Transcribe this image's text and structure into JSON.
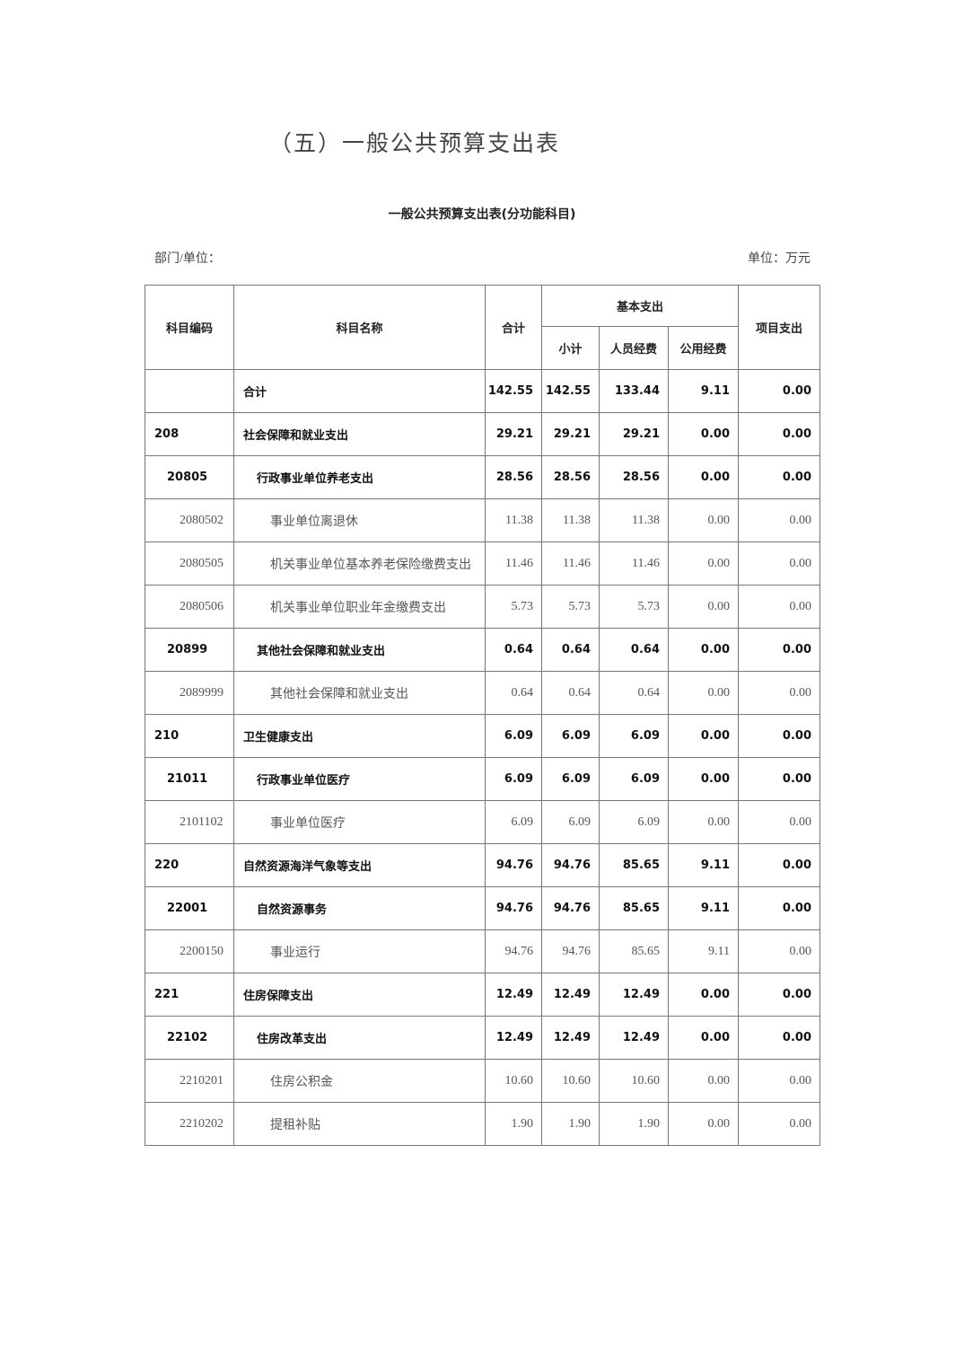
{
  "header": {
    "title": "（五）一般公共预算支出表",
    "table_title": "一般公共预算支出表(分功能科目)",
    "department_label": "部门/单位：",
    "unit_label": "单位：万元"
  },
  "table": {
    "columns": {
      "code": "科目编码",
      "name": "科目名称",
      "total": "合计",
      "basic": "基本支出",
      "subtotal": "小计",
      "personnel": "人员经费",
      "public": "公用经费",
      "project": "项目支出"
    },
    "rows": [
      [
        null,
        "合计",
        "142.55",
        "142.55",
        "133.44",
        "9.11",
        "0.00"
      ],
      [
        "208",
        "社会保障和就业支出",
        "29.21",
        "29.21",
        "29.21",
        "0.00",
        "0.00"
      ],
      [
        "20805",
        "行政事业单位养老支出",
        "28.56",
        "28.56",
        "28.56",
        "0.00",
        "0.00"
      ],
      [
        "2080502",
        "事业单位离退休",
        "11.38",
        "11.38",
        "11.38",
        "0.00",
        "0.00"
      ],
      [
        "2080505",
        "机关事业单位基本养老保险缴费支出",
        "11.46",
        "11.46",
        "11.46",
        "0.00",
        "0.00"
      ],
      [
        "2080506",
        "机关事业单位职业年金缴费支出",
        "5.73",
        "5.73",
        "5.73",
        "0.00",
        "0.00"
      ],
      [
        "20899",
        "其他社会保障和就业支出",
        "0.64",
        "0.64",
        "0.64",
        "0.00",
        "0.00"
      ],
      [
        "2089999",
        "其他社会保障和就业支出",
        "0.64",
        "0.64",
        "0.64",
        "0.00",
        "0.00"
      ],
      [
        "210",
        "卫生健康支出",
        "6.09",
        "6.09",
        "6.09",
        "0.00",
        "0.00"
      ],
      [
        "21011",
        "行政事业单位医疗",
        "6.09",
        "6.09",
        "6.09",
        "0.00",
        "0.00"
      ],
      [
        "2101102",
        "事业单位医疗",
        "6.09",
        "6.09",
        "6.09",
        "0.00",
        "0.00"
      ],
      [
        "220",
        "自然资源海洋气象等支出",
        "94.76",
        "94.76",
        "85.65",
        "9.11",
        "0.00"
      ],
      [
        "22001",
        "自然资源事务",
        "94.76",
        "94.76",
        "85.65",
        "9.11",
        "0.00"
      ],
      [
        "2200150",
        "事业运行",
        "94.76",
        "94.76",
        "85.65",
        "9.11",
        "0.00"
      ],
      [
        "221",
        "住房保障支出",
        "12.49",
        "12.49",
        "12.49",
        "0.00",
        "0.00"
      ],
      [
        "22102",
        "住房改革支出",
        "12.49",
        "12.49",
        "12.49",
        "0.00",
        "0.00"
      ],
      [
        "2210201",
        "住房公积金",
        "10.60",
        "10.60",
        "10.60",
        "0.00",
        "0.00"
      ],
      [
        "2210202",
        "提租补贴",
        "1.90",
        "1.90",
        "1.90",
        "0.00",
        "0.00"
      ]
    ]
  }
}
